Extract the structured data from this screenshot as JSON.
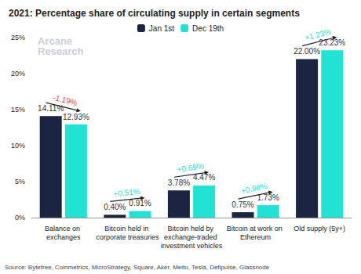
{
  "chart_data": {
    "type": "bar",
    "title": "2021: Percentage share of circulating supply in certain segments",
    "watermark": "Arcane Research",
    "source": "Source: Bytetree, Coinmetrics, MicroStrategy, Square, Aker, Meitu, Tesla, Defipulse, Glassnode",
    "categories": [
      "Balance on exchanges",
      "Bitcoin held in corporate treasuries",
      "Bitcoin held by exchange-traded investment vehicles",
      "Bitcoin at work on Ethereum",
      "Old supply (5y+)"
    ],
    "series": [
      {
        "name": "Jan 1st",
        "color": "#1b2440",
        "values": [
          14.11,
          0.4,
          3.78,
          0.75,
          22.0
        ],
        "value_labels": [
          "14.11%",
          "0.40%",
          "3.78%",
          "0.75%",
          "22.00%"
        ]
      },
      {
        "name": "Dec 19th",
        "color": "#22e3d3",
        "values": [
          12.93,
          0.91,
          4.47,
          1.73,
          23.23
        ],
        "value_labels": [
          "12.93%",
          "0.91%",
          "4.47%",
          "1.73%",
          "23.23%"
        ]
      }
    ],
    "changes": {
      "values": [
        -1.19,
        0.51,
        0.69,
        0.98,
        1.23
      ],
      "value_labels": [
        "-1.19%",
        "+0.51%",
        "+0.69%",
        "+0.98%",
        "+1.23%"
      ]
    },
    "ylim": [
      0,
      25
    ],
    "yticks": [
      {
        "value": 0,
        "label": "0%"
      },
      {
        "value": 5,
        "label": "5%"
      },
      {
        "value": 10,
        "label": "10%"
      },
      {
        "value": 15,
        "label": "15%"
      },
      {
        "value": 20,
        "label": "20%"
      },
      {
        "value": 25,
        "label": "25%"
      }
    ],
    "grid": false,
    "legend": "top",
    "data_labels": true
  }
}
